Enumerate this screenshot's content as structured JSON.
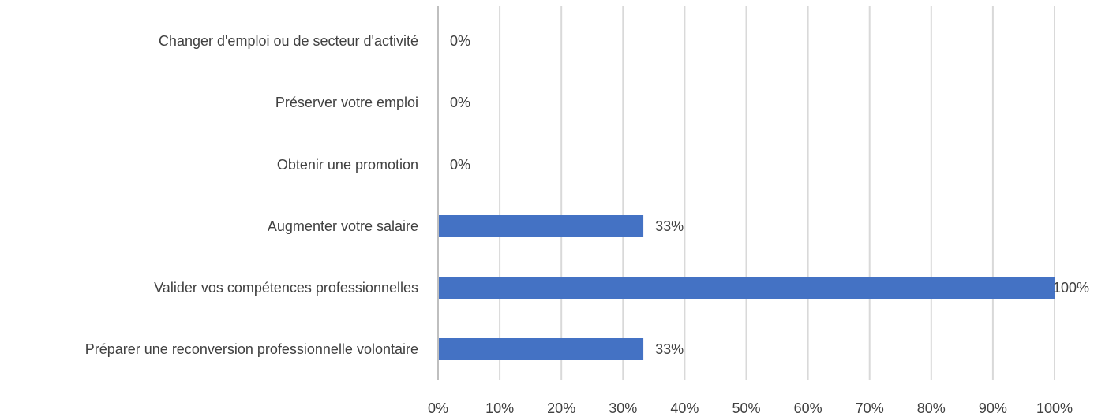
{
  "chart_data": {
    "type": "bar",
    "orientation": "horizontal",
    "categories": [
      "Changer d'emploi ou de secteur d'activité",
      "Préserver votre emploi",
      "Obtenir une promotion",
      "Augmenter votre salaire",
      "Valider vos compétences professionnelles",
      "Préparer une reconversion professionnelle volontaire"
    ],
    "values": [
      0,
      0,
      0,
      33.3,
      100,
      33.3
    ],
    "value_labels": [
      "0%",
      "0%",
      "0%",
      "33%",
      "100%",
      "33%"
    ],
    "xlim": [
      0,
      100
    ],
    "x_ticks": [
      0,
      10,
      20,
      30,
      40,
      50,
      60,
      70,
      80,
      90,
      100
    ],
    "x_tick_labels": [
      "0%",
      "10%",
      "20%",
      "30%",
      "40%",
      "50%",
      "60%",
      "70%",
      "80%",
      "90%",
      "100%"
    ],
    "grid": true,
    "legend": "none",
    "bar_color": "#4472C4",
    "grid_color": "#D9D9D9",
    "axis_color": "#BFBFBF",
    "text_color": "#404040"
  }
}
